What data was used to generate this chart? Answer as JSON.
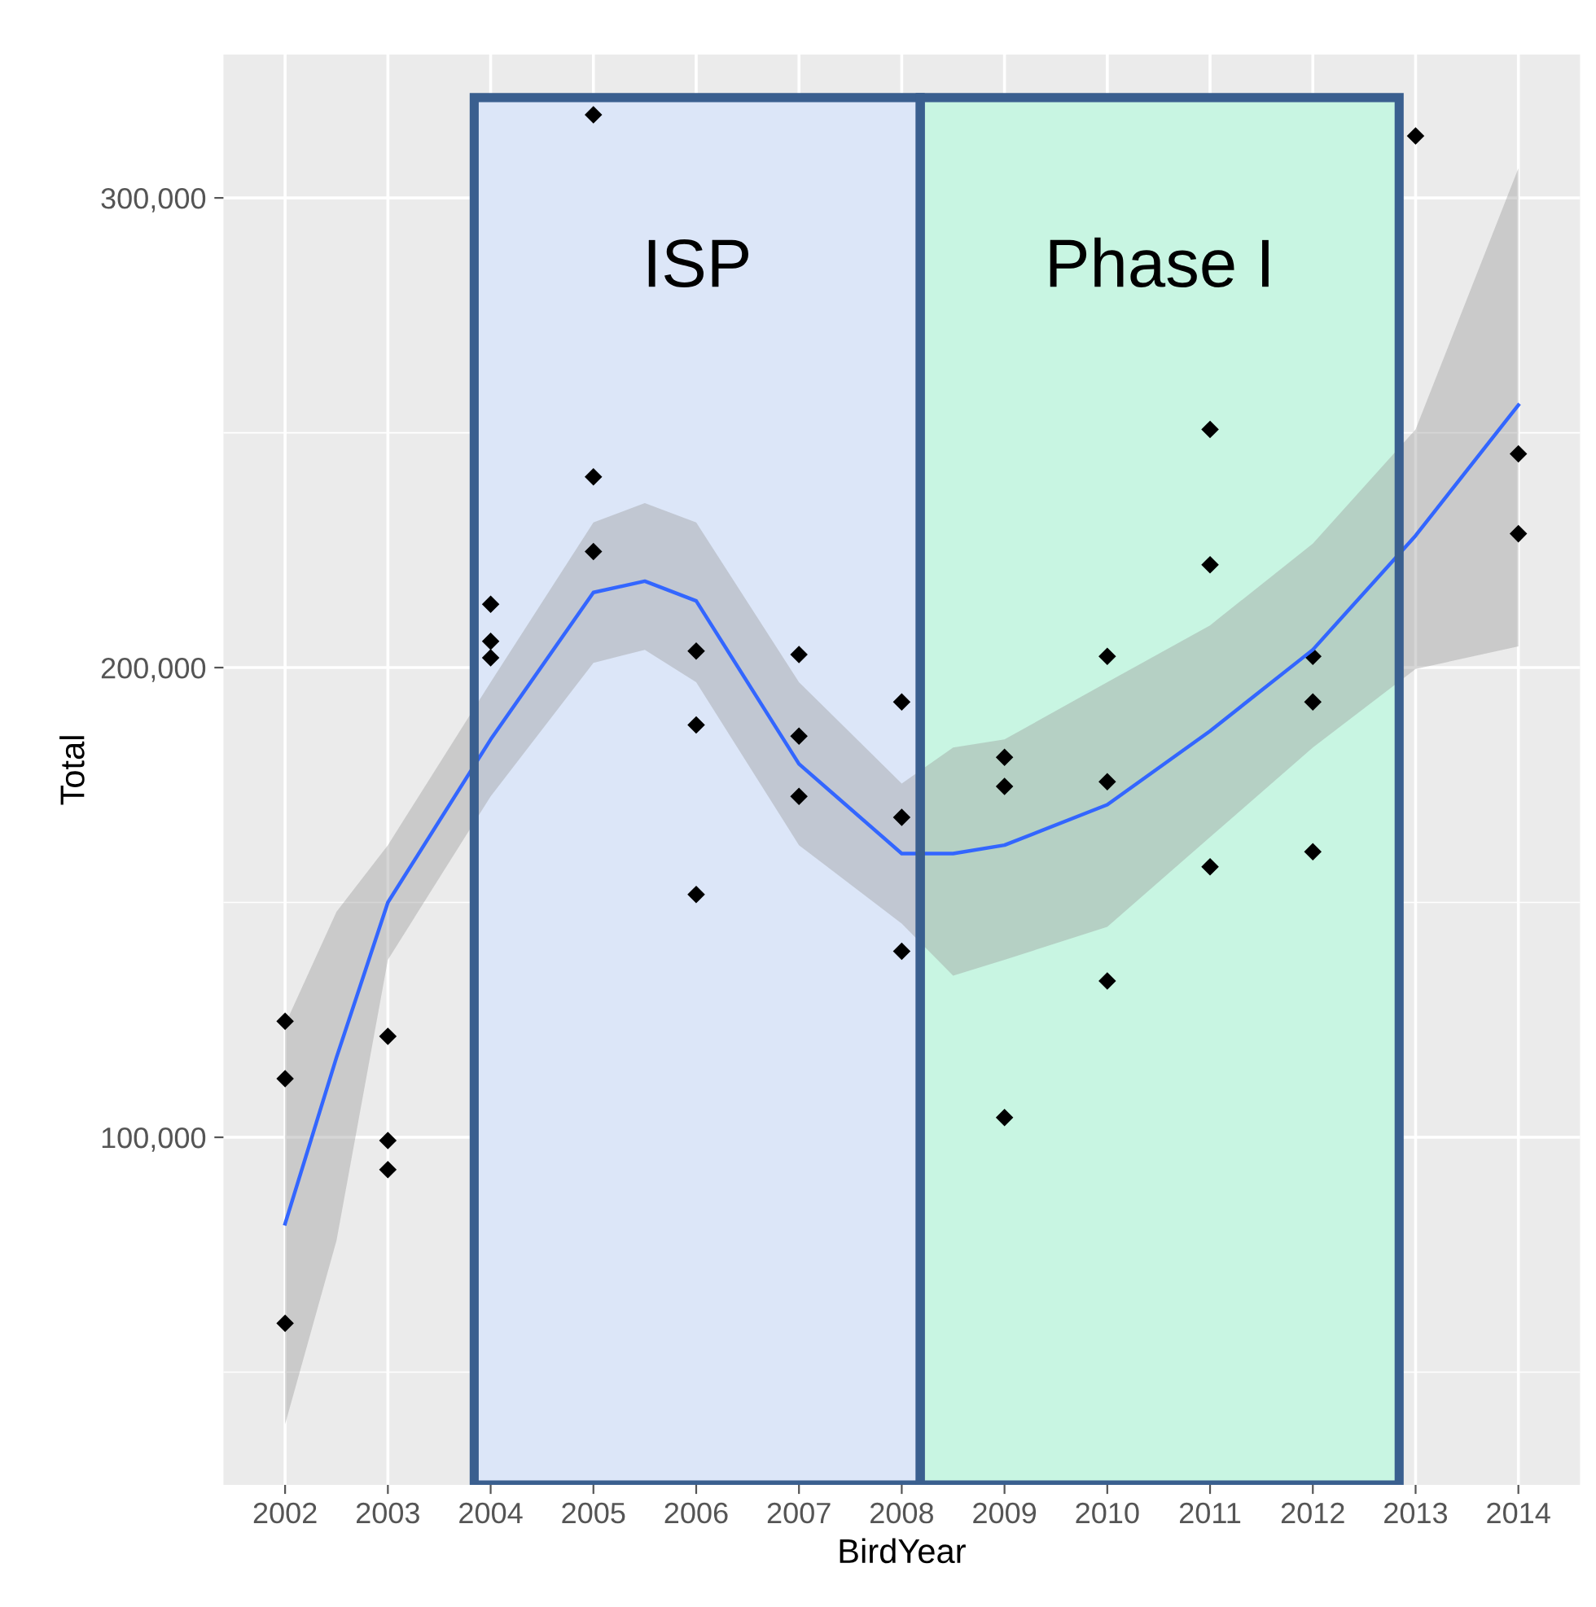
{
  "chart_data": {
    "type": "scatter",
    "xlabel": "BirdYear",
    "ylabel": "Total",
    "xlim": [
      2001.4,
      2014.6
    ],
    "ylim": [
      26000,
      330500
    ],
    "xticks": [
      2002,
      2003,
      2004,
      2005,
      2006,
      2007,
      2008,
      2009,
      2010,
      2011,
      2012,
      2013,
      2014
    ],
    "yticks": [
      {
        "value": 100000,
        "label": "100,000"
      },
      {
        "value": 200000,
        "label": "200,000"
      },
      {
        "value": 300000,
        "label": "300,000"
      }
    ],
    "grid": true,
    "legend": false,
    "series": [
      {
        "marker": "diamond",
        "color": "#000000",
        "x": [
          2002,
          2002,
          2002,
          2003,
          2003,
          2003,
          2004,
          2004,
          2004,
          2005,
          2005,
          2005,
          2006,
          2006,
          2006,
          2007,
          2007,
          2007,
          2008,
          2008,
          2008,
          2009,
          2009,
          2009,
          2010,
          2010,
          2010,
          2011,
          2011,
          2011,
          2012,
          2012,
          2012,
          2013,
          2014,
          2014
        ],
        "values": [
          124700,
          112500,
          60400,
          121500,
          99300,
          93100,
          213500,
          205600,
          202100,
          317700,
          240600,
          224700,
          203500,
          187800,
          151700,
          202800,
          185400,
          172600,
          192700,
          168100,
          139600,
          180900,
          174700,
          104200,
          202400,
          175700,
          133300,
          250700,
          221900,
          157600,
          202400,
          192700,
          160800,
          313200,
          245500,
          228500
        ]
      },
      {
        "type": "line",
        "color": "#3366ff",
        "x": [
          2002,
          2002.5,
          2003,
          2004,
          2005,
          2005.5,
          2006,
          2007,
          2008,
          2008.5,
          2009,
          2010,
          2011,
          2012,
          2013,
          2014
        ],
        "values": [
          81600,
          117000,
          150000,
          184700,
          216000,
          218400,
          214200,
          179500,
          160400,
          160400,
          162200,
          170800,
          186500,
          203800,
          228100,
          255900
        ],
        "lower": [
          38900,
          78000,
          137800,
          172600,
          201000,
          203800,
          196900,
          162200,
          145500,
          134400,
          137800,
          144800,
          163900,
          183000,
          199700,
          204500
        ],
        "upper": [
          124000,
          148000,
          162200,
          196900,
          230900,
          235000,
          230900,
          196900,
          175300,
          183000,
          184700,
          196900,
          209000,
          226400,
          250700,
          306300
        ]
      }
    ],
    "bands": [
      {
        "axis": "x",
        "from": 2003.84,
        "to": 2008.18,
        "label": "ISP",
        "color": "#dce6f8"
      },
      {
        "axis": "x",
        "from": 2008.18,
        "to": 2012.84,
        "label": "Phase I",
        "color": "#c8f5e2"
      }
    ]
  }
}
